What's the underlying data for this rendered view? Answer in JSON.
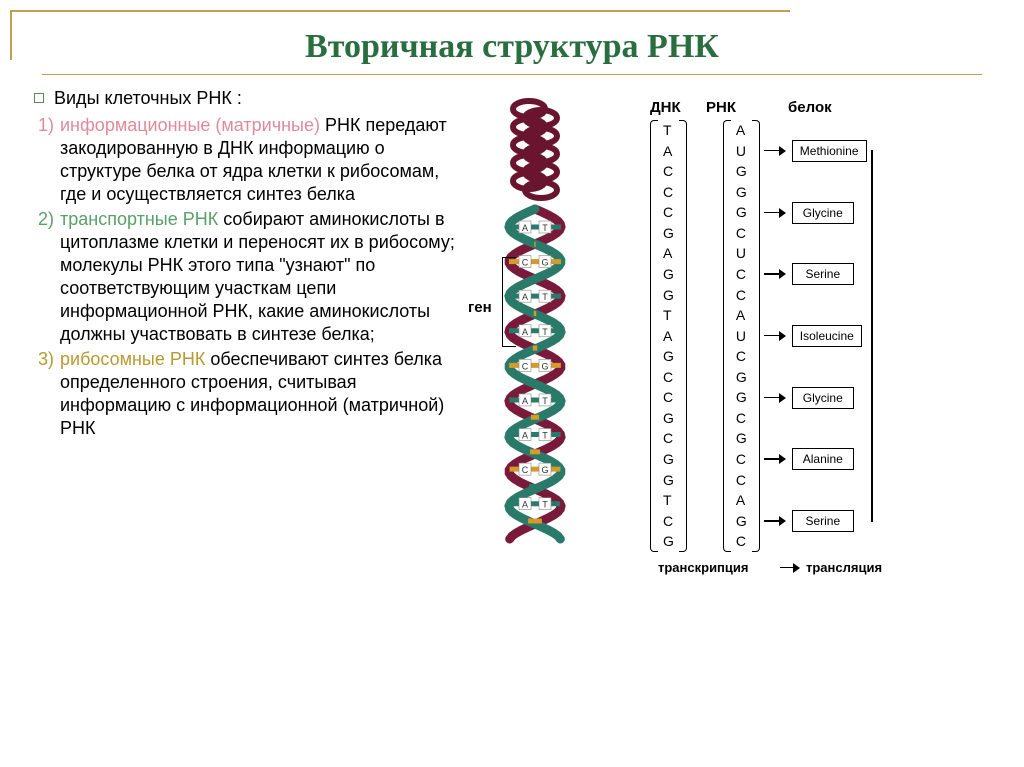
{
  "title": "Вторичная структура РНК",
  "intro": "Виды клеточных РНК :",
  "items": [
    {
      "num": "1)",
      "numClass": "c1",
      "lead": "информационные (матричные)",
      "leadClass": "hi1",
      "rest": " РНК передают закодированную в ДНК информацию о структуре белка от ядра клетки к рибосомам, где и осуществляется синтез белка"
    },
    {
      "num": "2)",
      "numClass": "c2",
      "lead": "транспортные РНК",
      "leadClass": "hi2",
      "rest": " собирают аминокислоты в цитоплазме клетки и переносят их в рибосому; молекулы РНК этого типа \"узнают\" по соответствующим участкам цепи информационной РНК, какие аминокислоты должны участвовать в синтезе белка;"
    },
    {
      "num": "3)",
      "numClass": "c3",
      "lead": "рибосомные РНК",
      "leadClass": "hi3",
      "rest": " обеспечивают синтез белка определенного строения, считывая информацию с информационной (матричной) РНК"
    }
  ],
  "genLabel": "ген",
  "seq": {
    "headers": {
      "dna": "ДНК",
      "rna": "РНК",
      "protein": "белок"
    },
    "dna": [
      "T",
      "A",
      "C",
      "C",
      "C",
      "G",
      "A",
      "G",
      "G",
      "T",
      "A",
      "G",
      "C",
      "C",
      "G",
      "C",
      "G",
      "G",
      "T",
      "C",
      "G"
    ],
    "rna": [
      "A",
      "U",
      "G",
      "G",
      "G",
      "C",
      "U",
      "C",
      "C",
      "A",
      "U",
      "C",
      "G",
      "G",
      "C",
      "G",
      "C",
      "C",
      "A",
      "G",
      "C"
    ],
    "proteins": [
      "Methionine",
      "Glycine",
      "Serine",
      "Isoleucine",
      "Glycine",
      "Alanine",
      "Serine"
    ],
    "bottomLabels": {
      "transcription": "транскрипция",
      "translation": "трансляция"
    }
  },
  "helix": {
    "colors": {
      "strand1": "#2a7a6a",
      "strand2": "#7a1a3a",
      "coil": "#6a1530"
    },
    "basePairColors": [
      "#2a7a6a",
      "#d49a2a",
      "#d49a2a",
      "#2a7a6a",
      "#2a7a6a",
      "#d49a2a"
    ],
    "baseLetters": [
      [
        "A",
        "T"
      ],
      [
        "G",
        "C"
      ],
      [
        "C",
        "G"
      ],
      [
        "T",
        "A"
      ],
      [
        "A",
        "T"
      ],
      [
        "G",
        "C"
      ]
    ]
  }
}
